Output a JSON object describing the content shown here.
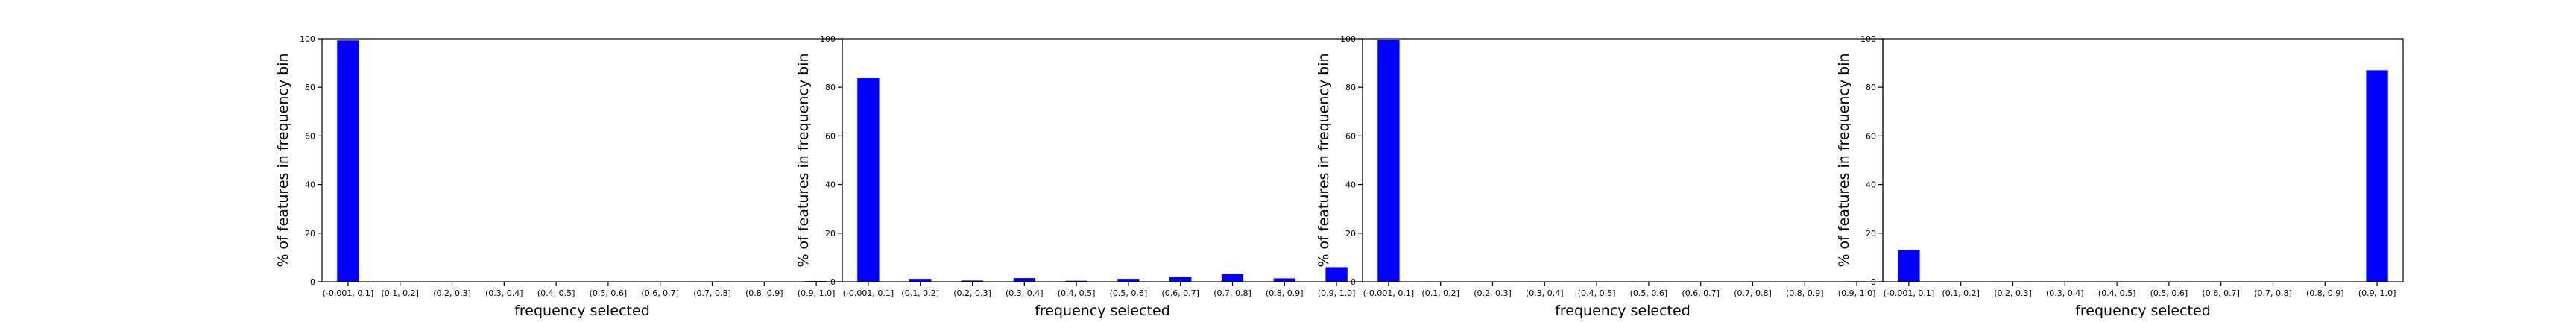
{
  "chart_data": [
    {
      "type": "bar",
      "categories": [
        "(-0.001, 0.1]",
        "(0.1, 0.2]",
        "(0.2, 0.3]",
        "(0.3, 0.4]",
        "(0.4, 0.5]",
        "(0.5, 0.6]",
        "(0.6, 0.7]",
        "(0.7, 0.8]",
        "(0.8, 0.9]",
        "(0.9, 1.0]"
      ],
      "values": [
        99.3,
        0,
        0,
        0,
        0,
        0,
        0,
        0,
        0,
        0.3
      ],
      "xlabel": "frequency selected",
      "ylabel": "% of features in frequency bin",
      "ylim": [
        0,
        100
      ],
      "yticks": [
        0,
        20,
        40,
        60,
        80,
        100
      ],
      "bar_color": "#0000ff"
    },
    {
      "type": "bar",
      "categories": [
        "(-0.001, 0.1]",
        "(0.1, 0.2]",
        "(0.2, 0.3]",
        "(0.3, 0.4]",
        "(0.4, 0.5]",
        "(0.5, 0.6]",
        "(0.6, 0.7]",
        "(0.7, 0.8]",
        "(0.8, 0.9]",
        "(0.9, 1.0]"
      ],
      "values": [
        84,
        1.2,
        0.5,
        1.5,
        0.4,
        1.2,
        2.0,
        3.2,
        1.4,
        6.0
      ],
      "xlabel": "frequency selected",
      "ylabel": "% of features in frequency bin",
      "ylim": [
        0,
        100
      ],
      "yticks": [
        0,
        20,
        40,
        60,
        80,
        100
      ],
      "bar_color": "#0000ff"
    },
    {
      "type": "bar",
      "categories": [
        "(-0.001, 0.1]",
        "(0.1, 0.2]",
        "(0.2, 0.3]",
        "(0.3, 0.4]",
        "(0.4, 0.5]",
        "(0.5, 0.6]",
        "(0.6, 0.7]",
        "(0.7, 0.8]",
        "(0.8, 0.9]",
        "(0.9, 1.0]"
      ],
      "values": [
        99.6,
        0,
        0,
        0,
        0,
        0,
        0,
        0,
        0,
        0.2
      ],
      "xlabel": "frequency selected",
      "ylabel": "% of features in frequency bin",
      "ylim": [
        0,
        100
      ],
      "yticks": [
        0,
        20,
        40,
        60,
        80,
        100
      ],
      "bar_color": "#0000ff"
    },
    {
      "type": "bar",
      "categories": [
        "(-0.001, 0.1]",
        "(0.1, 0.2]",
        "(0.2, 0.3]",
        "(0.3, 0.4]",
        "(0.4, 0.5]",
        "(0.5, 0.6]",
        "(0.6, 0.7]",
        "(0.7, 0.8]",
        "(0.8, 0.9]",
        "(0.9, 1.0]"
      ],
      "values": [
        13,
        0,
        0,
        0,
        0,
        0,
        0,
        0,
        0,
        87
      ],
      "xlabel": "frequency selected",
      "ylabel": "% of features in frequency bin",
      "ylim": [
        0,
        100
      ],
      "yticks": [
        0,
        20,
        40,
        60,
        80,
        100
      ],
      "bar_color": "#0000ff"
    }
  ]
}
